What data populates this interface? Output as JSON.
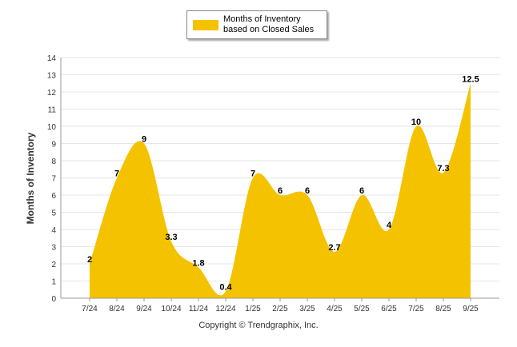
{
  "legend": {
    "label": "Months of Inventory based on Closed Sales"
  },
  "footer": {
    "copyright": "Copyright © Trendgraphix, Inc."
  },
  "colors": {
    "fill": "#f5c200",
    "grid": "#e6e6e6",
    "axis": "#999999"
  },
  "chart_data": {
    "type": "area",
    "categories": [
      "7/24",
      "8/24",
      "9/24",
      "10/24",
      "11/24",
      "12/24",
      "1/25",
      "2/25",
      "3/25",
      "4/25",
      "5/25",
      "6/25",
      "7/25",
      "8/25",
      "9/25"
    ],
    "series": [
      {
        "name": "Months of Inventory based on Closed Sales",
        "values": [
          2,
          7,
          9,
          3.3,
          1.8,
          0.4,
          7,
          6,
          6,
          2.7,
          6,
          4,
          10,
          7.3,
          12.5
        ]
      }
    ],
    "data_labels": [
      "2",
      "7",
      "9",
      "3.3",
      "1.8",
      "0.4",
      "7",
      "6",
      "6",
      "2.7",
      "6",
      "4",
      "10",
      "7.3",
      "12.5"
    ],
    "ylabel": "Months of Inventory",
    "xlabel": "",
    "ylim": [
      0,
      14
    ],
    "yticks": [
      0,
      1,
      2,
      3,
      4,
      5,
      6,
      7,
      8,
      9,
      10,
      11,
      12,
      13,
      14
    ],
    "grid": true,
    "legend_position": "top-center",
    "smooth": true
  }
}
